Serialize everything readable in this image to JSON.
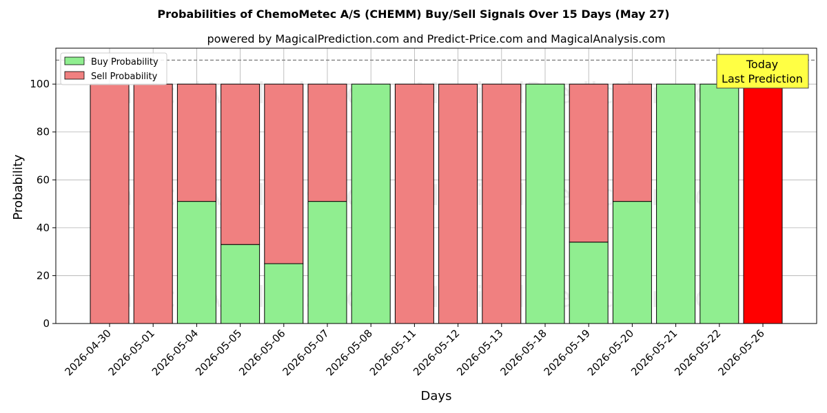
{
  "chart_data": {
    "type": "bar",
    "title": "Probabilities of ChemoMetec A/S (CHEMM) Buy/Sell Signals Over 15 Days (May 27)",
    "subtitle": "powered by MagicalPrediction.com and Predict-Price.com and MagicalAnalysis.com",
    "xlabel": "Days",
    "ylabel": "Probability",
    "ylim": [
      0,
      115
    ],
    "yticks": [
      0,
      20,
      40,
      60,
      80,
      100
    ],
    "grid": true,
    "stacked": true,
    "reference_line": 110,
    "legend_placement": "top-left",
    "categories": [
      "2026-04-30",
      "2026-05-01",
      "2026-05-04",
      "2026-05-05",
      "2026-05-06",
      "2026-05-07",
      "2026-05-08",
      "2026-05-11",
      "2026-05-12",
      "2026-05-13",
      "2026-05-18",
      "2026-05-19",
      "2026-05-20",
      "2026-05-21",
      "2026-05-22",
      "2026-05-26"
    ],
    "series": [
      {
        "name": "Buy Probability",
        "color": "#90ee90",
        "values": [
          0,
          0,
          51,
          33,
          25,
          51,
          100,
          0,
          0,
          0,
          100,
          34,
          51,
          100,
          100,
          0
        ]
      },
      {
        "name": "Sell Probability",
        "color": "#f08080",
        "values": [
          100,
          100,
          49,
          67,
          75,
          49,
          0,
          100,
          100,
          100,
          0,
          66,
          49,
          0,
          0,
          100
        ]
      }
    ],
    "highlight": {
      "index": 15,
      "color": "#ff0000"
    },
    "annotation": {
      "lines": [
        "Today",
        "Last Prediction"
      ],
      "background": "#ffff44"
    },
    "watermarks": [
      "MagicalAnalysis.com",
      "MagicalPrediction.com",
      "MagicalAnalysis.com",
      "MagicalPrediction.com",
      "MagicalAnalysis.com",
      "MagicalPrediction.com"
    ]
  }
}
